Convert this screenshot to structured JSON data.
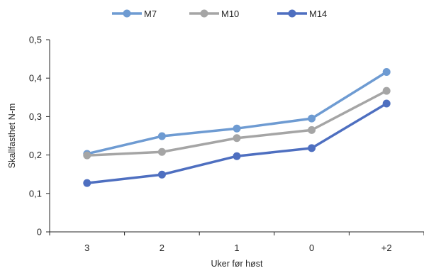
{
  "chart_data": {
    "type": "line",
    "categories": [
      "3",
      "2",
      "1",
      "0",
      "+2"
    ],
    "xlabel": "Uker før høst",
    "ylabel": "Skallfasthet N-m",
    "ylim": [
      0,
      0.5
    ],
    "yticks": [
      "0",
      "0,1",
      "0,2",
      "0,3",
      "0,4",
      "0,5"
    ],
    "grid": false,
    "legend_position": "top",
    "series": [
      {
        "name": "M7",
        "color": "#6E9BD2",
        "values": [
          0.203,
          0.249,
          0.269,
          0.295,
          0.416
        ]
      },
      {
        "name": "M10",
        "color": "#A5A5A5",
        "values": [
          0.199,
          0.208,
          0.244,
          0.265,
          0.367
        ]
      },
      {
        "name": "M14",
        "color": "#4E6FC0",
        "values": [
          0.127,
          0.149,
          0.197,
          0.218,
          0.334
        ]
      }
    ]
  }
}
